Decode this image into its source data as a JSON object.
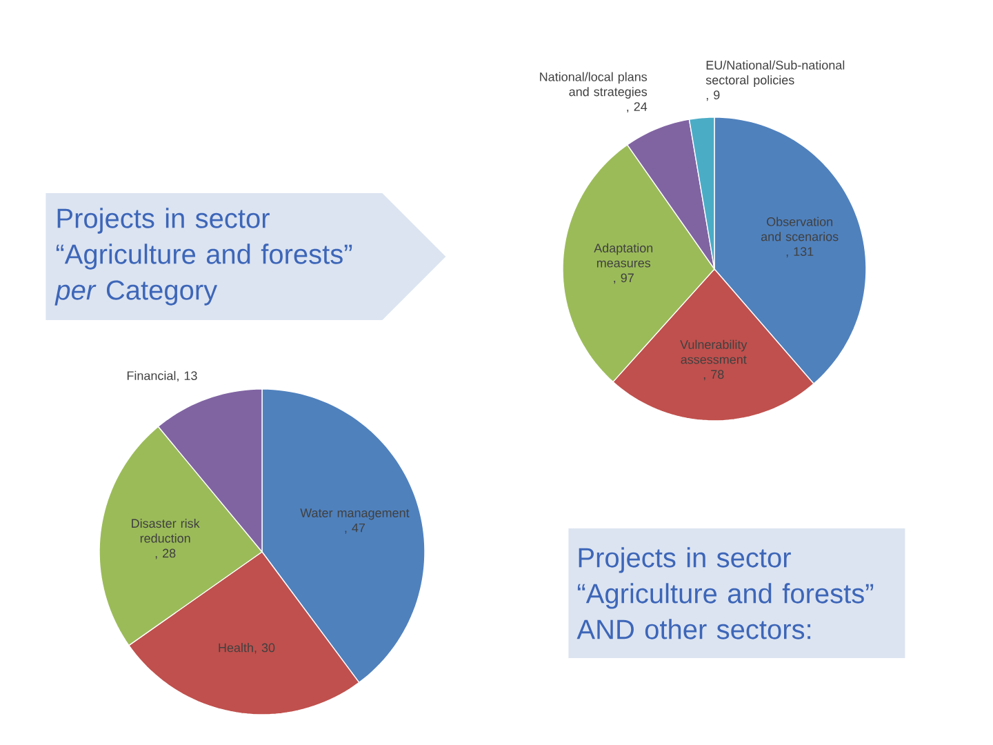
{
  "chart_data": [
    {
      "type": "pie",
      "title": "Projects in sector “Agriculture and forests” *per* Category",
      "categories": [
        "Observation and scenarios",
        "Vulnerability assessment",
        "Adaptation measures",
        "National/local plans and strategies",
        "EU/National/Sub-national sectoral policies"
      ],
      "values": [
        131,
        78,
        97,
        24,
        9
      ],
      "value_labels": [
        ", 131",
        ", 78",
        ", 97",
        ", 24",
        ", 9"
      ],
      "colors": [
        "#4f81bd",
        "#c0504d",
        "#9bbb59",
        "#8064a2",
        "#4bacc6"
      ]
    },
    {
      "type": "pie",
      "title": "Projects in sector “Agriculture and forests” AND other sectors:",
      "categories": [
        "Water management",
        "Health",
        "Disaster risk reduction",
        "Financial"
      ],
      "values": [
        47,
        30,
        28,
        13
      ],
      "value_labels": [
        ", 47",
        ", 30",
        ", 28",
        ", 13"
      ],
      "colors": [
        "#4f81bd",
        "#c0504d",
        "#9bbb59",
        "#8064a2"
      ]
    }
  ]
}
